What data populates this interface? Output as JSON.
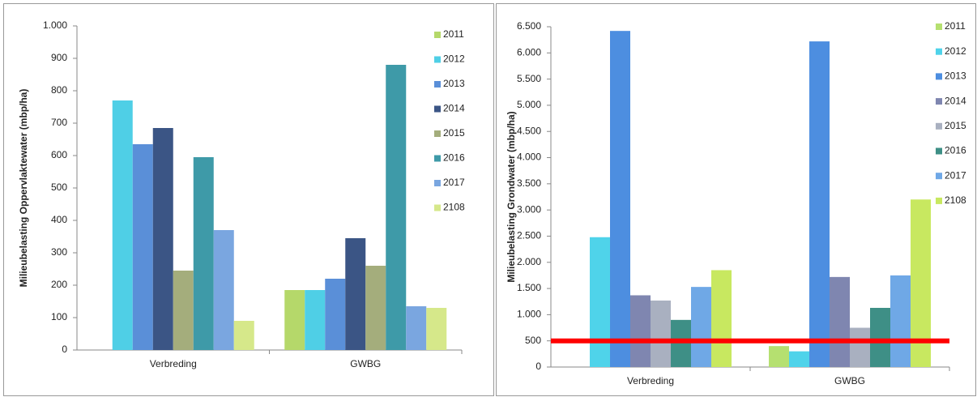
{
  "chart_data": [
    {
      "type": "bar",
      "ylabel": "Milieubelasting Oppervlaktewater (mbp/ha)",
      "categories": [
        "Verbreding",
        "GWBG"
      ],
      "ylim": [
        0,
        1000
      ],
      "yticks": [
        0,
        100,
        200,
        300,
        400,
        500,
        600,
        700,
        800,
        900,
        {
          "value": 1000,
          "label": "1.000"
        }
      ],
      "series": [
        {
          "name": "2011",
          "color": "#b5d86a",
          "values": [
            0,
            185
          ]
        },
        {
          "name": "2012",
          "color": "#4fcfe6",
          "values": [
            770,
            185
          ]
        },
        {
          "name": "2013",
          "color": "#5a8fd8",
          "values": [
            635,
            220
          ]
        },
        {
          "name": "2014",
          "color": "#3b5585",
          "values": [
            685,
            345
          ]
        },
        {
          "name": "2015",
          "color": "#a4ad7c",
          "values": [
            245,
            260
          ]
        },
        {
          "name": "2016",
          "color": "#3e9aa8",
          "values": [
            595,
            880
          ]
        },
        {
          "name": "2017",
          "color": "#7aa6e0",
          "values": [
            370,
            135
          ]
        },
        {
          "name": "2108",
          "color": "#d6e88a",
          "values": [
            90,
            130
          ]
        }
      ]
    },
    {
      "type": "bar",
      "ylabel": "Milieubelasting Grondwater (mbp/ha)",
      "categories": [
        "Verbreding",
        "GWBG"
      ],
      "ylim": [
        0,
        6500
      ],
      "yticks": [
        0,
        500,
        {
          "value": 1000,
          "label": "1.000"
        },
        {
          "value": 1500,
          "label": "1.500"
        },
        {
          "value": 2000,
          "label": "2.000"
        },
        {
          "value": 2500,
          "label": "2.500"
        },
        {
          "value": 3000,
          "label": "3.000"
        },
        {
          "value": 3500,
          "label": "3.500"
        },
        {
          "value": 4000,
          "label": "4.000"
        },
        {
          "value": 4500,
          "label": "4.500"
        },
        {
          "value": 5000,
          "label": "5.000"
        },
        {
          "value": 5500,
          "label": "5.500"
        },
        {
          "value": 6000,
          "label": "6.000"
        },
        {
          "value": 6500,
          "label": "6.500"
        }
      ],
      "series": [
        {
          "name": "2011",
          "color": "#b5e070",
          "values": [
            0,
            400
          ]
        },
        {
          "name": "2012",
          "color": "#4fd3ea",
          "values": [
            2480,
            300
          ]
        },
        {
          "name": "2013",
          "color": "#4d8ee0",
          "values": [
            6420,
            6220
          ]
        },
        {
          "name": "2014",
          "color": "#7f86b0",
          "values": [
            1370,
            1720
          ]
        },
        {
          "name": "2015",
          "color": "#a9b0c0",
          "values": [
            1270,
            750
          ]
        },
        {
          "name": "2016",
          "color": "#3e8f86",
          "values": [
            900,
            1130
          ]
        },
        {
          "name": "2017",
          "color": "#6fa8e6",
          "values": [
            1530,
            1750
          ]
        },
        {
          "name": "2108",
          "color": "#c8e860",
          "values": [
            1850,
            3200
          ]
        }
      ],
      "reference_line": {
        "value": 500,
        "color": "#ff0000"
      }
    }
  ]
}
